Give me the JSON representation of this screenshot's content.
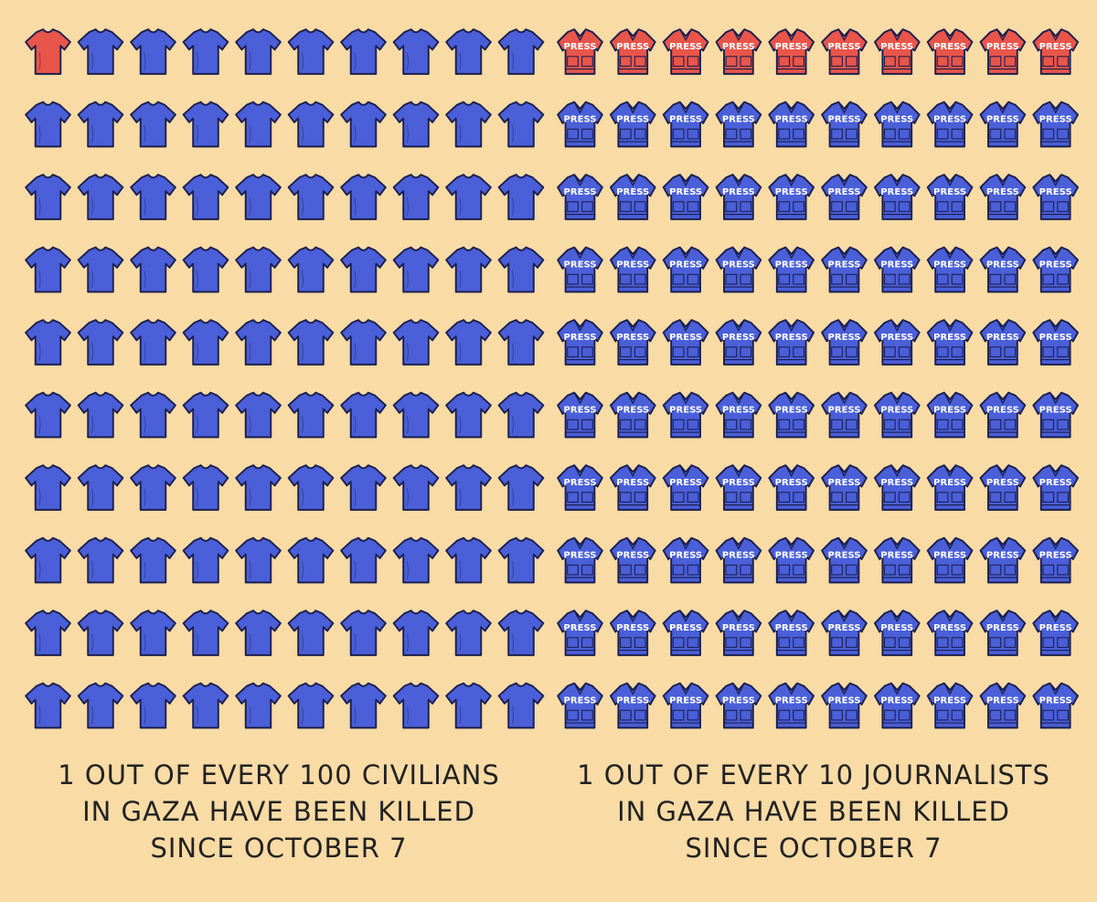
{
  "chart_data": [
    {
      "type": "waffle",
      "icon": "shirt",
      "total": 100,
      "highlighted": 1,
      "columns": 10,
      "highlight_color": "#e8554a",
      "color": "#4a5fd8",
      "background": "#f8dba5",
      "caption": [
        "1 OUT OF EVERY 100 CIVILIANS",
        "IN GAZA HAVE BEEN KILLED",
        "SINCE OCTOBER 7"
      ]
    },
    {
      "type": "waffle",
      "icon": "vest",
      "icon_label": "PRESS",
      "total": 100,
      "highlighted": 10,
      "columns": 10,
      "highlight_color": "#e8554a",
      "color": "#4a5fd8",
      "background": "#f8dba5",
      "caption": [
        "1 OUT OF EVERY 10 JOURNALISTS",
        "IN GAZA HAVE BEEN KILLED",
        "SINCE OCTOBER 7"
      ]
    }
  ]
}
